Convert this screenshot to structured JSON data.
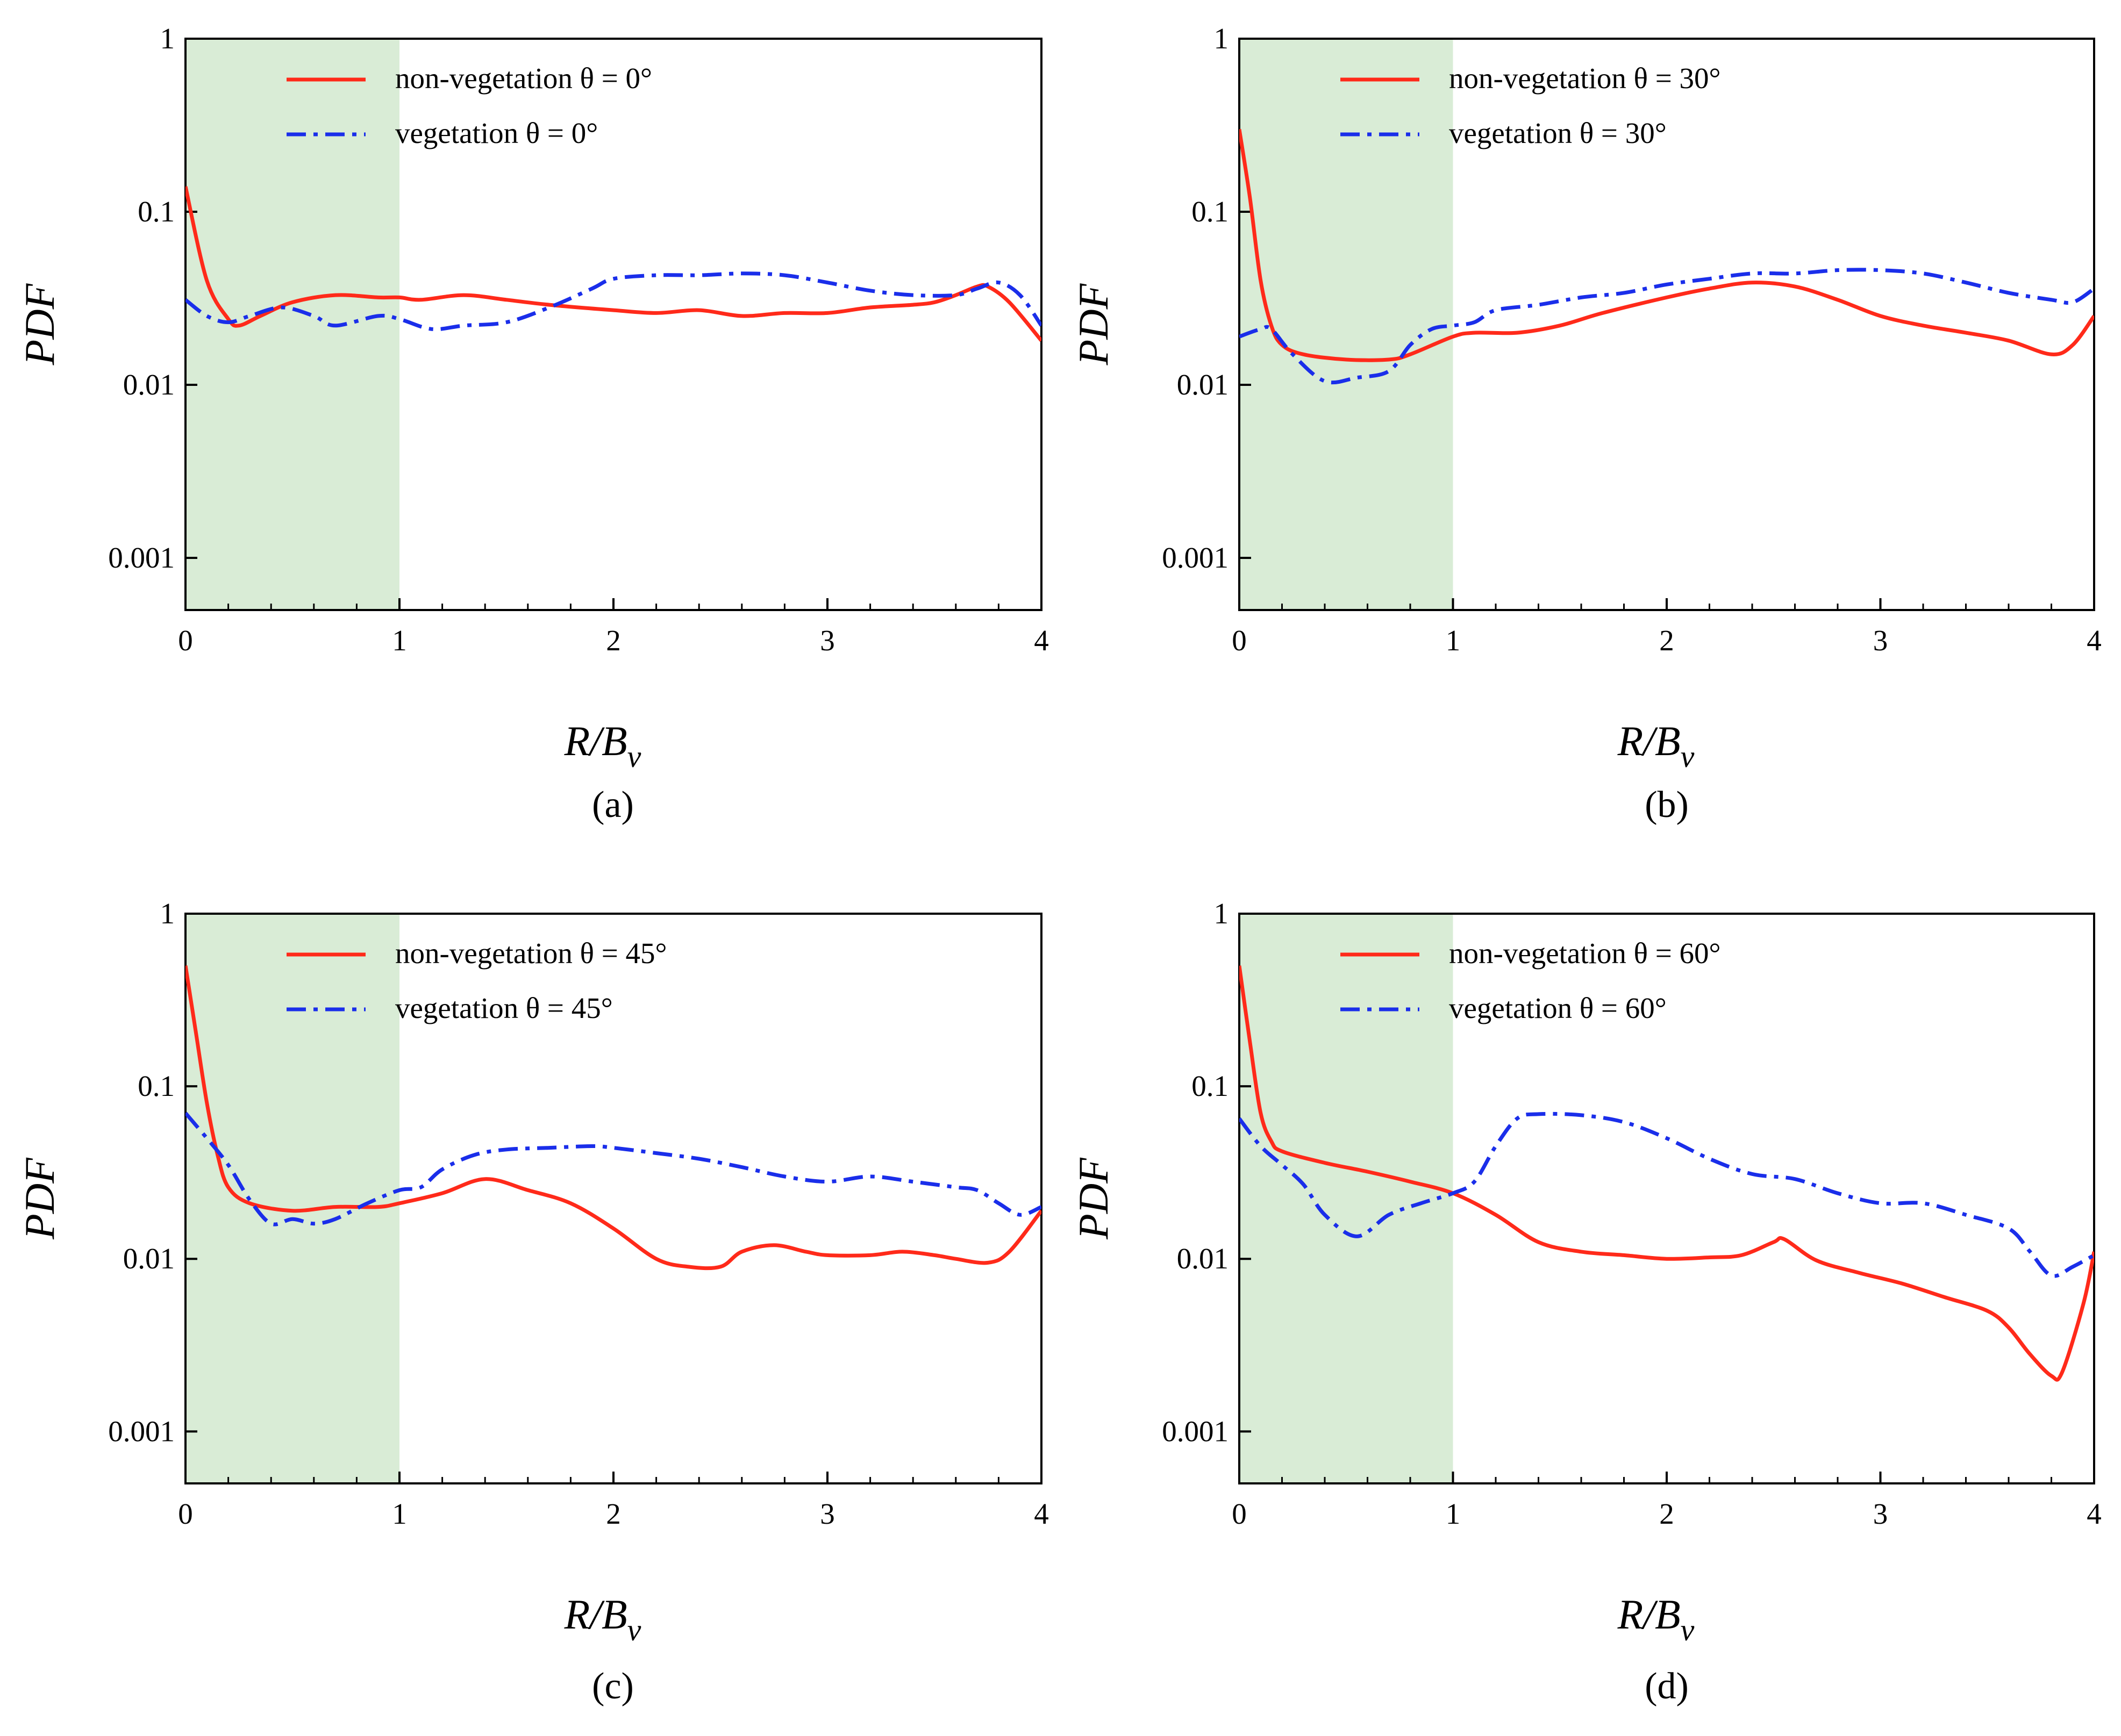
{
  "figure": {
    "panel_labels": [
      "(a)",
      "(b)",
      "(c)",
      "(d)"
    ]
  },
  "colors": {
    "non_vegetation": "#ff2a1a",
    "vegetation": "#1a2eea",
    "shade": "#d9ecd6",
    "axis": "#000000"
  },
  "chart_data": [
    {
      "type": "line",
      "panel": "(a)",
      "xlabel": "R/B",
      "xlabel_sub": "v",
      "ylabel": "PDF",
      "xlim": [
        0,
        4
      ],
      "ylim": [
        0.0005,
        1
      ],
      "yscale": "log",
      "xticks": [
        "0",
        "1",
        "2",
        "3",
        "4"
      ],
      "yticks": [
        "1",
        "0.1",
        "0.01",
        "0.001"
      ],
      "shaded_region_x": [
        0,
        1
      ],
      "legend": [
        "non-vegetation θ = 0°",
        "vegetation θ = 0°"
      ],
      "series": [
        {
          "name": "non-vegetation θ = 0°",
          "style": "solid",
          "x": [
            0,
            0.1,
            0.2,
            0.25,
            0.35,
            0.5,
            0.7,
            0.9,
            1.0,
            1.1,
            1.3,
            1.5,
            1.7,
            2.0,
            2.2,
            2.4,
            2.6,
            2.8,
            3.0,
            3.2,
            3.4,
            3.5,
            3.6,
            3.7,
            3.75,
            3.85,
            4.0
          ],
          "y": [
            0.14,
            0.04,
            0.024,
            0.022,
            0.025,
            0.03,
            0.033,
            0.032,
            0.032,
            0.031,
            0.033,
            0.031,
            0.029,
            0.027,
            0.026,
            0.027,
            0.025,
            0.026,
            0.026,
            0.028,
            0.029,
            0.03,
            0.033,
            0.037,
            0.037,
            0.03,
            0.018
          ]
        },
        {
          "name": "vegetation θ = 0°",
          "style": "dashdot",
          "x": [
            0,
            0.1,
            0.2,
            0.3,
            0.45,
            0.6,
            0.7,
            0.9,
            1.0,
            1.15,
            1.3,
            1.5,
            1.7,
            1.9,
            2.0,
            2.2,
            2.4,
            2.6,
            2.8,
            3.0,
            3.2,
            3.4,
            3.6,
            3.7,
            3.8,
            3.9,
            4.0
          ],
          "y": [
            0.031,
            0.025,
            0.023,
            0.025,
            0.028,
            0.025,
            0.022,
            0.025,
            0.024,
            0.021,
            0.022,
            0.023,
            0.028,
            0.036,
            0.041,
            0.043,
            0.043,
            0.044,
            0.043,
            0.039,
            0.035,
            0.033,
            0.033,
            0.036,
            0.039,
            0.033,
            0.022
          ]
        }
      ]
    },
    {
      "type": "line",
      "panel": "(b)",
      "xlabel": "R/B",
      "xlabel_sub": "v",
      "ylabel": "PDF",
      "xlim": [
        0,
        4
      ],
      "ylim": [
        0.0005,
        1
      ],
      "yscale": "log",
      "xticks": [
        "0",
        "1",
        "2",
        "3",
        "4"
      ],
      "yticks": [
        "1",
        "0.1",
        "0.01",
        "0.001"
      ],
      "shaded_region_x": [
        0,
        1
      ],
      "legend": [
        "non-vegetation θ = 30°",
        "vegetation θ = 30°"
      ],
      "series": [
        {
          "name": "non-vegetation θ = 30°",
          "style": "solid",
          "x": [
            0,
            0.05,
            0.1,
            0.15,
            0.2,
            0.3,
            0.5,
            0.7,
            0.8,
            1.0,
            1.1,
            1.3,
            1.5,
            1.7,
            2.0,
            2.2,
            2.4,
            2.6,
            2.8,
            3.0,
            3.2,
            3.4,
            3.6,
            3.8,
            3.9,
            4.0
          ],
          "y": [
            0.3,
            0.12,
            0.04,
            0.022,
            0.017,
            0.015,
            0.014,
            0.014,
            0.015,
            0.019,
            0.02,
            0.02,
            0.022,
            0.026,
            0.032,
            0.036,
            0.039,
            0.037,
            0.031,
            0.025,
            0.022,
            0.02,
            0.018,
            0.015,
            0.017,
            0.025
          ]
        },
        {
          "name": "vegetation θ = 30°",
          "style": "dashdot",
          "x": [
            0,
            0.1,
            0.15,
            0.25,
            0.4,
            0.55,
            0.7,
            0.8,
            0.9,
            1.0,
            1.1,
            1.2,
            1.4,
            1.6,
            1.8,
            2.0,
            2.2,
            2.4,
            2.6,
            2.8,
            3.0,
            3.2,
            3.4,
            3.6,
            3.8,
            3.9,
            4.0
          ],
          "y": [
            0.019,
            0.021,
            0.021,
            0.015,
            0.0105,
            0.011,
            0.012,
            0.017,
            0.021,
            0.022,
            0.023,
            0.027,
            0.029,
            0.032,
            0.034,
            0.038,
            0.041,
            0.044,
            0.044,
            0.046,
            0.046,
            0.044,
            0.039,
            0.034,
            0.031,
            0.03,
            0.036
          ]
        }
      ]
    },
    {
      "type": "line",
      "panel": "(c)",
      "xlabel": "R/B",
      "xlabel_sub": "v",
      "ylabel": "PDF",
      "xlim": [
        0,
        4
      ],
      "ylim": [
        0.0005,
        1
      ],
      "yscale": "log",
      "xticks": [
        "0",
        "1",
        "2",
        "3",
        "4"
      ],
      "yticks": [
        "1",
        "0.1",
        "0.01",
        "0.001"
      ],
      "shaded_region_x": [
        0,
        1
      ],
      "legend": [
        "non-vegetation θ = 45°",
        "vegetation θ = 45°"
      ],
      "series": [
        {
          "name": "non-vegetation θ = 45°",
          "style": "solid",
          "x": [
            0,
            0.05,
            0.1,
            0.15,
            0.2,
            0.3,
            0.5,
            0.7,
            0.9,
            1.0,
            1.2,
            1.4,
            1.6,
            1.8,
            2.0,
            2.2,
            2.35,
            2.5,
            2.6,
            2.75,
            2.9,
            3.0,
            3.2,
            3.35,
            3.5,
            3.6,
            3.75,
            3.85,
            4.0
          ],
          "y": [
            0.5,
            0.2,
            0.08,
            0.04,
            0.026,
            0.021,
            0.019,
            0.02,
            0.02,
            0.021,
            0.024,
            0.029,
            0.025,
            0.021,
            0.015,
            0.01,
            0.009,
            0.009,
            0.011,
            0.012,
            0.011,
            0.0105,
            0.0105,
            0.011,
            0.0105,
            0.01,
            0.0095,
            0.011,
            0.019
          ]
        },
        {
          "name": "vegetation θ = 45°",
          "style": "dashdot",
          "x": [
            0,
            0.1,
            0.2,
            0.3,
            0.4,
            0.5,
            0.6,
            0.7,
            0.85,
            1.0,
            1.1,
            1.2,
            1.35,
            1.5,
            1.7,
            1.9,
            2.0,
            2.2,
            2.4,
            2.6,
            2.8,
            3.0,
            3.2,
            3.4,
            3.6,
            3.7,
            3.8,
            3.9,
            4.0
          ],
          "y": [
            0.07,
            0.05,
            0.035,
            0.022,
            0.016,
            0.017,
            0.016,
            0.017,
            0.021,
            0.025,
            0.026,
            0.033,
            0.04,
            0.043,
            0.044,
            0.045,
            0.044,
            0.041,
            0.038,
            0.034,
            0.03,
            0.028,
            0.03,
            0.028,
            0.026,
            0.025,
            0.021,
            0.018,
            0.02
          ]
        }
      ]
    },
    {
      "type": "line",
      "panel": "(d)",
      "xlabel": "R/B",
      "xlabel_sub": "v",
      "ylabel": "PDF",
      "xlim": [
        0,
        4
      ],
      "ylim": [
        0.0005,
        1
      ],
      "yscale": "log",
      "xticks": [
        "0",
        "1",
        "2",
        "3",
        "4"
      ],
      "yticks": [
        "1",
        "0.1",
        "0.01",
        "0.001"
      ],
      "shaded_region_x": [
        0,
        1
      ],
      "legend": [
        "non-vegetation θ = 60°",
        "vegetation θ = 60°"
      ],
      "series": [
        {
          "name": "non-vegetation θ = 60°",
          "style": "solid",
          "x": [
            0,
            0.05,
            0.1,
            0.15,
            0.2,
            0.4,
            0.6,
            0.8,
            1.0,
            1.2,
            1.4,
            1.6,
            1.8,
            2.0,
            2.2,
            2.35,
            2.5,
            2.55,
            2.7,
            2.9,
            3.1,
            3.3,
            3.5,
            3.6,
            3.7,
            3.8,
            3.85,
            3.95,
            4.0
          ],
          "y": [
            0.5,
            0.18,
            0.07,
            0.048,
            0.042,
            0.036,
            0.032,
            0.028,
            0.024,
            0.018,
            0.0125,
            0.011,
            0.0105,
            0.01,
            0.0102,
            0.0105,
            0.0125,
            0.013,
            0.0098,
            0.0083,
            0.0072,
            0.006,
            0.005,
            0.004,
            0.0028,
            0.0021,
            0.0022,
            0.0055,
            0.011
          ]
        },
        {
          "name": "vegetation θ = 60°",
          "style": "dashdot",
          "x": [
            0,
            0.1,
            0.2,
            0.3,
            0.4,
            0.55,
            0.7,
            0.85,
            1.0,
            1.1,
            1.2,
            1.3,
            1.4,
            1.6,
            1.8,
            2.0,
            2.2,
            2.4,
            2.6,
            2.8,
            3.0,
            3.2,
            3.4,
            3.6,
            3.7,
            3.8,
            3.9,
            4.0
          ],
          "y": [
            0.065,
            0.045,
            0.035,
            0.027,
            0.018,
            0.0135,
            0.018,
            0.021,
            0.024,
            0.028,
            0.045,
            0.065,
            0.069,
            0.068,
            0.062,
            0.05,
            0.038,
            0.031,
            0.029,
            0.024,
            0.021,
            0.021,
            0.018,
            0.015,
            0.011,
            0.008,
            0.009,
            0.0105
          ]
        }
      ]
    }
  ]
}
